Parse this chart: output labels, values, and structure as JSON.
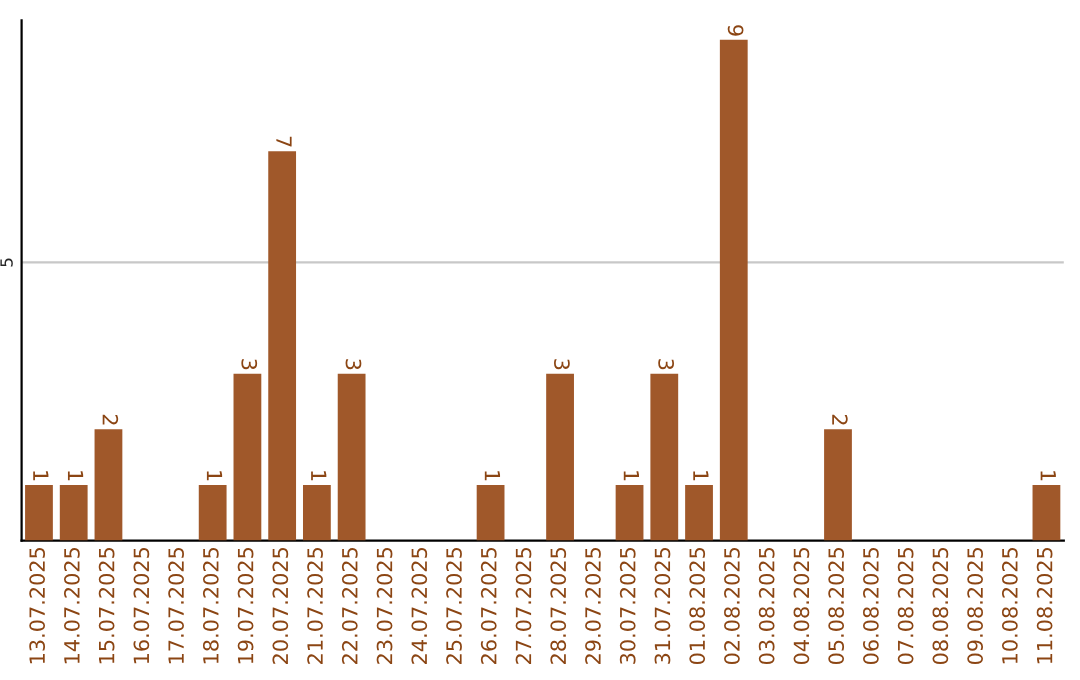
{
  "chart_data": {
    "type": "bar",
    "categories": [
      "13.07.2025",
      "14.07.2025",
      "15.07.2025",
      "16.07.2025",
      "17.07.2025",
      "18.07.2025",
      "19.07.2025",
      "20.07.2025",
      "21.07.2025",
      "22.07.2025",
      "23.07.2025",
      "24.07.2025",
      "25.07.2025",
      "26.07.2025",
      "27.07.2025",
      "28.07.2025",
      "29.07.2025",
      "30.07.2025",
      "31.07.2025",
      "01.08.2025",
      "02.08.2025",
      "03.08.2025",
      "04.08.2025",
      "05.08.2025",
      "06.08.2025",
      "07.08.2025",
      "08.08.2025",
      "09.08.2025",
      "10.08.2025",
      "11.08.2025"
    ],
    "values": [
      1,
      1,
      2,
      0,
      0,
      1,
      3,
      7,
      1,
      3,
      0,
      0,
      0,
      1,
      0,
      3,
      0,
      1,
      3,
      1,
      9,
      0,
      0,
      2,
      0,
      0,
      0,
      0,
      0,
      1
    ],
    "value_labels": [
      "1",
      "1",
      "2",
      null,
      null,
      "1",
      "3",
      "7",
      "1",
      "3",
      null,
      null,
      null,
      "1",
      null,
      "3",
      null,
      "1",
      "3",
      "1",
      "9",
      null,
      null,
      "2",
      null,
      null,
      null,
      null,
      null,
      "1"
    ],
    "color": "#a0582a",
    "ylim": [
      0,
      9.35
    ],
    "yticks": [
      5
    ],
    "grid": "y"
  }
}
